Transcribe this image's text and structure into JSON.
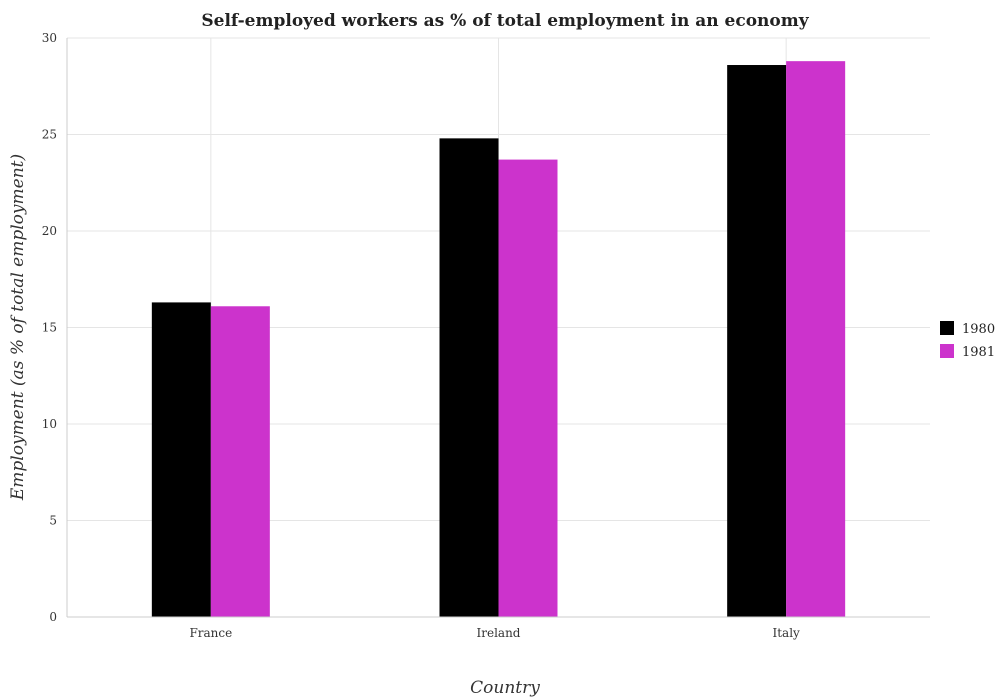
{
  "chart_data": {
    "type": "bar",
    "title": "Self-employed workers as % of total employment in an economy",
    "xlabel": "Country",
    "ylabel": "Employment (as % of total employment)",
    "categories": [
      "France",
      "Ireland",
      "Italy"
    ],
    "series": [
      {
        "name": "1980",
        "color": "#000000",
        "values": [
          16.3,
          24.8,
          28.6
        ]
      },
      {
        "name": "1981",
        "color": "#cc33cc",
        "values": [
          16.1,
          23.7,
          28.8
        ]
      }
    ],
    "ylim": [
      0,
      30
    ],
    "yticks": [
      0,
      5,
      10,
      15,
      20,
      25,
      30
    ],
    "grid": true,
    "legend_position": "right"
  }
}
